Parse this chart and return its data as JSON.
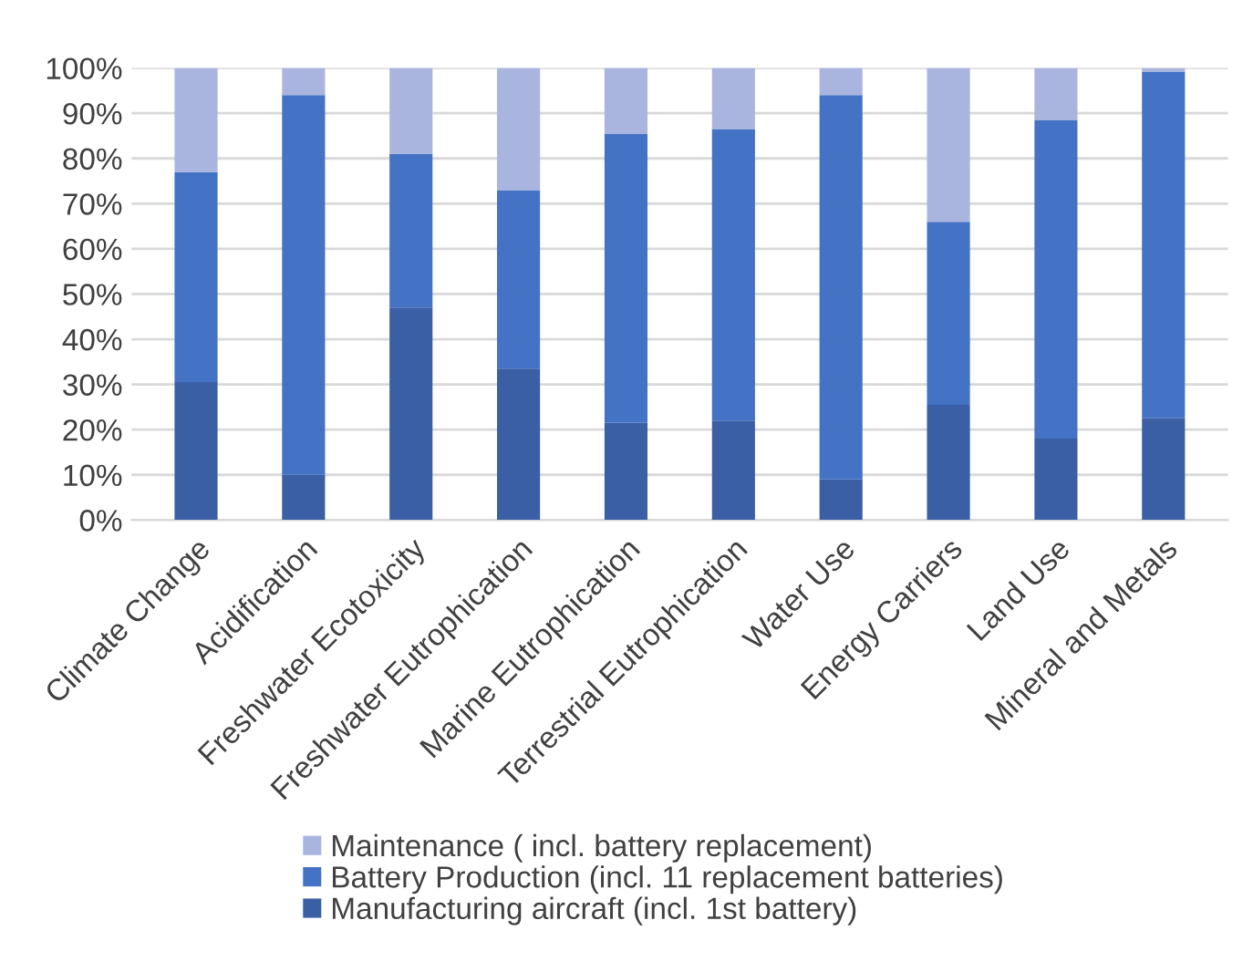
{
  "chart_data": {
    "type": "bar",
    "stacked": true,
    "categories": [
      "Climate Change",
      "Acidification",
      "Freshwater Ecotoxicity",
      "Freshwater Eutrophication",
      "Marine Eutrophication",
      "Terrestrial Eutrophication",
      "Water Use",
      "Energy Carriers",
      "Land Use",
      "Mineral and Metals"
    ],
    "series": [
      {
        "name": "Manufacturing aircraft (incl. 1st battery)",
        "color": "#3a5fa5",
        "values": [
          30.5,
          10,
          47,
          33.5,
          21.5,
          22,
          9,
          25.5,
          18,
          22.5
        ]
      },
      {
        "name": "Battery Production (incl. 11 replacement batteries)",
        "color": "#4472c4",
        "values": [
          46.5,
          84,
          34,
          39.5,
          64,
          64.5,
          85,
          40.5,
          70.5,
          76.7
        ]
      },
      {
        "name": "Maintenance ( incl. battery replacement)",
        "color": "#a9b5df",
        "values": [
          23,
          6,
          19,
          27,
          14.5,
          13.5,
          6,
          34,
          11.5,
          0.8
        ]
      }
    ],
    "ylim": [
      0,
      100
    ],
    "yticks": [
      {
        "value": 0,
        "label": "0%"
      },
      {
        "value": 10,
        "label": "10%"
      },
      {
        "value": 20,
        "label": "20%"
      },
      {
        "value": 30,
        "label": "30%"
      },
      {
        "value": 40,
        "label": "40%"
      },
      {
        "value": 50,
        "label": "50%"
      },
      {
        "value": 60,
        "label": "60%"
      },
      {
        "value": 70,
        "label": "70%"
      },
      {
        "value": 80,
        "label": "80%"
      },
      {
        "value": 90,
        "label": "90%"
      },
      {
        "value": 100,
        "label": "100%"
      }
    ],
    "grid": "y",
    "legend": "bottom"
  }
}
